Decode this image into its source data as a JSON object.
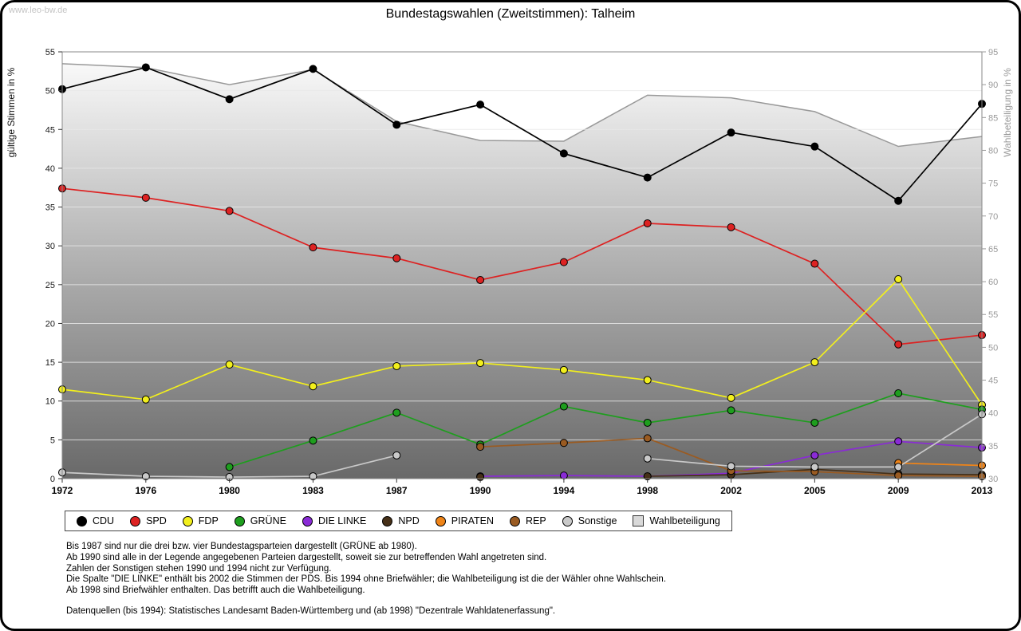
{
  "watermark": "www.leo-bw.de",
  "chart_data": {
    "type": "line",
    "title": "Bundestagswahlen (Zweitstimmen): Talheim",
    "x": [
      1972,
      1976,
      1980,
      1983,
      1987,
      1990,
      1994,
      1998,
      2002,
      2005,
      2009,
      2013
    ],
    "y_left": {
      "label": "gültige Stimmen in %",
      "min": 0,
      "max": 55,
      "tick": 5
    },
    "y_right": {
      "label": "Wahlbeteiligung in %",
      "min": 30,
      "max": 95,
      "tick": 5
    },
    "grid": true,
    "legend_position": "bottom",
    "series": [
      {
        "name": "CDU",
        "color": "#000000",
        "axis": "left",
        "values": [
          50.2,
          53.0,
          48.9,
          52.8,
          45.6,
          48.2,
          41.9,
          38.8,
          44.6,
          42.8,
          35.8,
          48.3
        ]
      },
      {
        "name": "SPD",
        "color": "#dd2222",
        "axis": "left",
        "values": [
          37.4,
          36.2,
          34.5,
          29.8,
          28.4,
          25.6,
          27.9,
          32.9,
          32.4,
          27.7,
          17.3,
          18.5
        ]
      },
      {
        "name": "FDP",
        "color": "#f2ef1d",
        "axis": "left",
        "values": [
          11.5,
          10.2,
          14.7,
          11.9,
          14.5,
          14.9,
          14.0,
          12.7,
          10.4,
          15.0,
          25.7,
          9.5
        ]
      },
      {
        "name": "GRÜNE",
        "color": "#1e9e1e",
        "axis": "left",
        "values": [
          null,
          null,
          1.5,
          4.9,
          8.5,
          4.4,
          9.3,
          7.2,
          8.8,
          7.2,
          11.0,
          8.9
        ]
      },
      {
        "name": "DIE LINKE",
        "color": "#8a2bd6",
        "axis": "left",
        "values": [
          null,
          null,
          null,
          null,
          null,
          0.3,
          0.4,
          0.3,
          0.7,
          3.0,
          4.8,
          4.0
        ]
      },
      {
        "name": "NPD",
        "color": "#463018",
        "axis": "left",
        "values": [
          null,
          null,
          null,
          null,
          null,
          0.2,
          null,
          0.3,
          0.5,
          1.2,
          0.6,
          0.5
        ]
      },
      {
        "name": "PIRATEN",
        "color": "#ef8418",
        "axis": "left",
        "values": [
          null,
          null,
          null,
          null,
          null,
          null,
          null,
          null,
          null,
          null,
          2.0,
          1.7
        ]
      },
      {
        "name": "REP",
        "color": "#9a5b22",
        "axis": "left",
        "values": [
          null,
          null,
          null,
          null,
          null,
          4.1,
          4.6,
          5.2,
          1.0,
          0.9,
          0.4,
          0.3
        ]
      },
      {
        "name": "Sonstige",
        "color": "#c9c9c9",
        "axis": "left",
        "values": [
          0.8,
          0.3,
          0.2,
          0.3,
          3.0,
          null,
          null,
          2.6,
          1.6,
          1.5,
          1.5,
          8.3
        ]
      },
      {
        "name": "Wahlbeteiligung",
        "color": "#999999",
        "axis": "right",
        "area": true,
        "values": [
          93.2,
          92.6,
          90.0,
          92.3,
          84.4,
          81.5,
          81.4,
          88.4,
          88.0,
          85.9,
          80.6,
          82.1
        ]
      }
    ]
  },
  "footnotes": [
    "Bis 1987 sind nur die drei bzw. vier Bundestagsparteien dargestellt (GRÜNE ab 1980).",
    "Ab 1990 sind alle in der Legende angegebenen Parteien dargestellt, soweit sie zur betreffenden Wahl angetreten sind.",
    "Zahlen der Sonstigen stehen 1990 und 1994 nicht zur Verfügung.",
    "Die Spalte \"DIE LINKE\" enthält bis 2002 die Stimmen der PDS. Bis 1994 ohne Briefwähler; die Wahlbeteiligung ist die der Wähler ohne Wahlschein.",
    "Ab 1998 sind Briefwähler enthalten. Das betrifft auch die Wahlbeteiligung.",
    "",
    "Datenquellen (bis 1994): Statistisches Landesamt Baden-Württemberg und (ab 1998) \"Dezentrale Wahldatenerfassung\"."
  ]
}
